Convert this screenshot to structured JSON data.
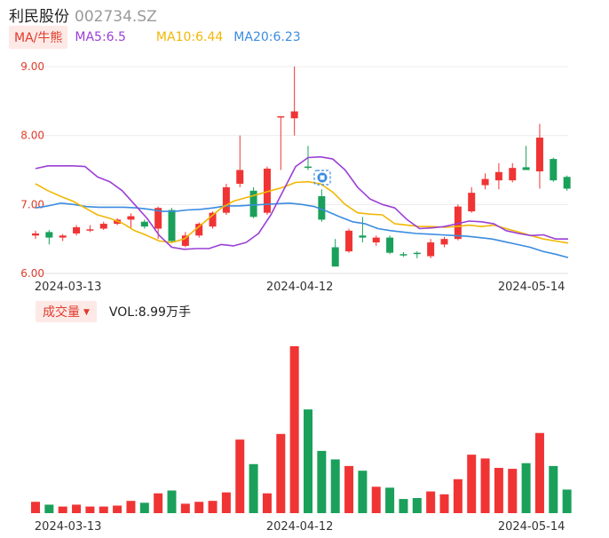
{
  "header": {
    "name": "利民股份",
    "code": "002734.SZ"
  },
  "ma": {
    "toggle": "MA/牛熊",
    "ma5": {
      "label": "MA5:6.5",
      "color": "#9b3fd6"
    },
    "ma10": {
      "label": "MA10:6.44",
      "color": "#f2b705"
    },
    "ma20": {
      "label": "MA20:6.23",
      "color": "#3b8be0"
    }
  },
  "volume": {
    "toggle": "成交量",
    "label": "VOL:8.99万手"
  },
  "colors": {
    "up": "#f03434",
    "down": "#1aa05a"
  },
  "chart_data": {
    "type": "candlestick",
    "y_ticks": [
      "9.00",
      "8.00",
      "7.00",
      "6.00"
    ],
    "ylim": [
      6.0,
      9.0
    ],
    "x_tick_labels": [
      {
        "label": "2024-03-13",
        "index": 2
      },
      {
        "label": "2024-04-12",
        "index": 19
      },
      {
        "label": "2024-05-14",
        "index": 36
      }
    ],
    "candles": [
      {
        "o": 6.55,
        "c": 6.58,
        "h": 6.62,
        "l": 6.5,
        "v": 12
      },
      {
        "o": 6.6,
        "c": 6.52,
        "h": 6.63,
        "l": 6.42,
        "v": 9
      },
      {
        "o": 6.52,
        "c": 6.55,
        "h": 6.57,
        "l": 6.47,
        "v": 7
      },
      {
        "o": 6.58,
        "c": 6.67,
        "h": 6.7,
        "l": 6.55,
        "v": 9
      },
      {
        "o": 6.63,
        "c": 6.64,
        "h": 6.7,
        "l": 6.6,
        "v": 7
      },
      {
        "o": 6.65,
        "c": 6.72,
        "h": 6.75,
        "l": 6.63,
        "v": 7
      },
      {
        "o": 6.72,
        "c": 6.78,
        "h": 6.8,
        "l": 6.7,
        "v": 8
      },
      {
        "o": 6.78,
        "c": 6.83,
        "h": 6.87,
        "l": 6.65,
        "v": 13
      },
      {
        "o": 6.75,
        "c": 6.68,
        "h": 6.78,
        "l": 6.65,
        "v": 11
      },
      {
        "o": 6.65,
        "c": 6.95,
        "h": 6.97,
        "l": 6.5,
        "v": 21
      },
      {
        "o": 6.92,
        "c": 6.47,
        "h": 6.95,
        "l": 6.45,
        "v": 24
      },
      {
        "o": 6.4,
        "c": 6.55,
        "h": 6.6,
        "l": 6.38,
        "v": 10
      },
      {
        "o": 6.55,
        "c": 6.72,
        "h": 6.74,
        "l": 6.52,
        "v": 12
      },
      {
        "o": 6.68,
        "c": 6.88,
        "h": 6.9,
        "l": 6.65,
        "v": 13
      },
      {
        "o": 6.88,
        "c": 7.25,
        "h": 7.3,
        "l": 6.85,
        "v": 22
      },
      {
        "o": 7.3,
        "c": 7.5,
        "h": 8.0,
        "l": 7.25,
        "v": 78
      },
      {
        "o": 7.2,
        "c": 6.82,
        "h": 7.25,
        "l": 6.8,
        "v": 52
      },
      {
        "o": 6.88,
        "c": 7.52,
        "h": 7.55,
        "l": 6.85,
        "v": 21
      },
      {
        "o": 8.28,
        "c": 8.28,
        "h": 8.28,
        "l": 7.5,
        "v": 84
      },
      {
        "o": 8.25,
        "c": 8.35,
        "h": 9.0,
        "l": 8.0,
        "v": 177
      },
      {
        "o": 7.55,
        "c": 7.54,
        "h": 7.85,
        "l": 7.5,
        "v": 110
      },
      {
        "o": 7.12,
        "c": 6.78,
        "h": 7.22,
        "l": 6.75,
        "v": 66
      },
      {
        "o": 6.38,
        "c": 6.1,
        "h": 6.5,
        "l": 6.1,
        "v": 57
      },
      {
        "o": 6.32,
        "c": 6.62,
        "h": 6.65,
        "l": 6.3,
        "v": 50
      },
      {
        "o": 6.55,
        "c": 6.52,
        "h": 6.82,
        "l": 6.45,
        "v": 45
      },
      {
        "o": 6.45,
        "c": 6.52,
        "h": 6.55,
        "l": 6.4,
        "v": 28
      },
      {
        "o": 6.52,
        "c": 6.3,
        "h": 6.55,
        "l": 6.28,
        "v": 27
      },
      {
        "o": 6.28,
        "c": 6.27,
        "h": 6.31,
        "l": 6.24,
        "v": 15
      },
      {
        "o": 6.3,
        "c": 6.29,
        "h": 6.32,
        "l": 6.22,
        "v": 16
      },
      {
        "o": 6.25,
        "c": 6.45,
        "h": 6.5,
        "l": 6.22,
        "v": 23
      },
      {
        "o": 6.42,
        "c": 6.5,
        "h": 6.53,
        "l": 6.38,
        "v": 20
      },
      {
        "o": 6.5,
        "c": 6.97,
        "h": 7.0,
        "l": 6.48,
        "v": 36
      },
      {
        "o": 6.9,
        "c": 7.17,
        "h": 7.25,
        "l": 6.88,
        "v": 62
      },
      {
        "o": 7.28,
        "c": 7.37,
        "h": 7.45,
        "l": 7.22,
        "v": 58
      },
      {
        "o": 7.35,
        "c": 7.47,
        "h": 7.6,
        "l": 7.22,
        "v": 48
      },
      {
        "o": 7.35,
        "c": 7.53,
        "h": 7.6,
        "l": 7.32,
        "v": 47
      },
      {
        "o": 7.54,
        "c": 7.5,
        "h": 7.85,
        "l": 7.5,
        "v": 53
      },
      {
        "o": 7.48,
        "c": 7.97,
        "h": 8.17,
        "l": 7.23,
        "v": 85
      },
      {
        "o": 7.66,
        "c": 7.35,
        "h": 7.68,
        "l": 7.33,
        "v": 50
      },
      {
        "o": 7.4,
        "c": 7.23,
        "h": 7.42,
        "l": 7.2,
        "v": 25
      }
    ],
    "ma5": [
      7.52,
      7.56,
      7.56,
      7.56,
      7.55,
      7.4,
      7.33,
      7.2,
      7.0,
      6.8,
      6.55,
      6.38,
      6.35,
      6.36,
      6.36,
      6.42,
      6.4,
      6.45,
      6.58,
      6.85,
      7.2,
      7.55,
      7.68,
      7.69,
      7.66,
      7.5,
      7.25,
      7.08,
      7.0,
      6.95,
      6.78,
      6.65,
      6.66,
      6.68,
      6.72,
      6.76,
      6.75,
      6.72,
      6.62,
      6.58,
      6.55,
      6.56,
      6.5,
      6.5
    ],
    "ma10": [
      7.3,
      7.2,
      7.12,
      7.05,
      6.95,
      6.85,
      6.8,
      6.73,
      6.62,
      6.55,
      6.47,
      6.45,
      6.5,
      6.65,
      6.8,
      6.95,
      7.05,
      7.1,
      7.15,
      7.2,
      7.25,
      7.32,
      7.33,
      7.3,
      7.18,
      7.0,
      6.88,
      6.86,
      6.85,
      6.72,
      6.7,
      6.68,
      6.68,
      6.67,
      6.68,
      6.7,
      6.68,
      6.7,
      6.65,
      6.6,
      6.55,
      6.5,
      6.47,
      6.44
    ],
    "ma20": [
      6.95,
      6.98,
      7.02,
      7.0,
      6.97,
      6.96,
      6.96,
      6.96,
      6.95,
      6.93,
      6.9,
      6.9,
      6.92,
      6.93,
      6.95,
      6.98,
      6.98,
      6.99,
      7.0,
      7.01,
      7.02,
      7.0,
      6.97,
      6.9,
      6.82,
      6.75,
      6.72,
      6.65,
      6.62,
      6.6,
      6.58,
      6.57,
      6.56,
      6.55,
      6.54,
      6.52,
      6.5,
      6.46,
      6.42,
      6.38,
      6.32,
      6.28,
      6.23
    ]
  }
}
